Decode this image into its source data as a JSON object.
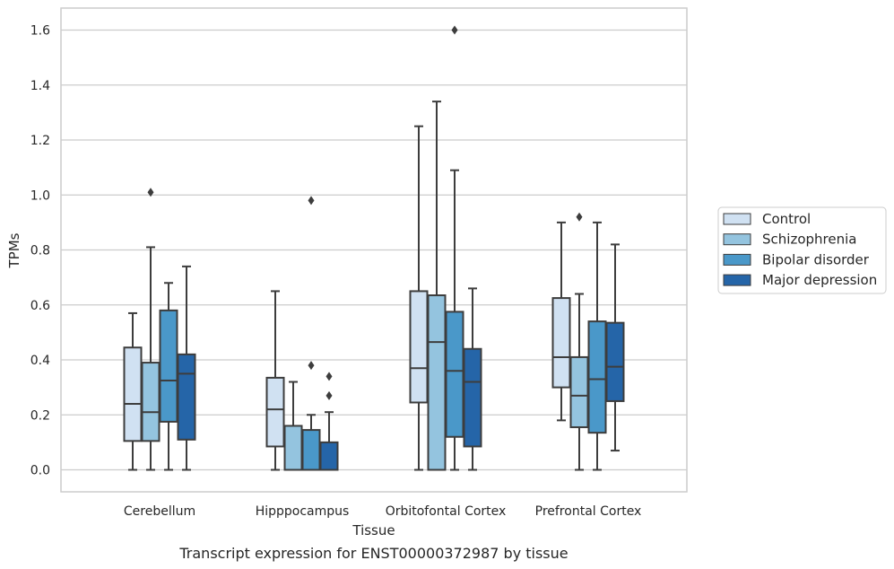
{
  "caption": "Transcript expression for ENST00000372987 by tissue",
  "chart_data": {
    "type": "box",
    "xlabel": "Tissue",
    "ylabel": "TPMs",
    "ylim": [
      -0.08,
      1.68
    ],
    "yticks": [
      "0.0",
      "0.2",
      "0.4",
      "0.6",
      "0.8",
      "1.0",
      "1.2",
      "1.4",
      "1.6"
    ],
    "grid": "horizontal",
    "legend_position": "right",
    "categories": [
      "Cerebellum",
      "Hipppocampus",
      "Orbitofontal Cortex",
      "Prefrontal Cortex"
    ],
    "series": [
      {
        "name": "Control",
        "color": "#d0e1f2",
        "boxes": [
          {
            "whislo": 0.0,
            "q1": 0.105,
            "med": 0.24,
            "q3": 0.445,
            "whishi": 0.57,
            "fliers": []
          },
          {
            "whislo": 0.0,
            "q1": 0.085,
            "med": 0.22,
            "q3": 0.335,
            "whishi": 0.65,
            "fliers": []
          },
          {
            "whislo": 0.0,
            "q1": 0.245,
            "med": 0.37,
            "q3": 0.65,
            "whishi": 1.25,
            "fliers": []
          },
          {
            "whislo": 0.18,
            "q1": 0.3,
            "med": 0.41,
            "q3": 0.625,
            "whishi": 0.9,
            "fliers": []
          }
        ]
      },
      {
        "name": "Schizophrenia",
        "color": "#94c4df",
        "boxes": [
          {
            "whislo": 0.0,
            "q1": 0.105,
            "med": 0.21,
            "q3": 0.39,
            "whishi": 0.81,
            "fliers": [
              1.01
            ]
          },
          {
            "whislo": 0.0,
            "q1": 0.0,
            "med": 0.0,
            "q3": 0.16,
            "whishi": 0.32,
            "fliers": []
          },
          {
            "whislo": 0.0,
            "q1": 0.0,
            "med": 0.465,
            "q3": 0.635,
            "whishi": 1.34,
            "fliers": []
          },
          {
            "whislo": 0.0,
            "q1": 0.155,
            "med": 0.27,
            "q3": 0.41,
            "whishi": 0.64,
            "fliers": [
              0.92
            ]
          }
        ]
      },
      {
        "name": "Bipolar disorder",
        "color": "#4a98c9",
        "boxes": [
          {
            "whislo": 0.0,
            "q1": 0.175,
            "med": 0.325,
            "q3": 0.58,
            "whishi": 0.68,
            "fliers": []
          },
          {
            "whislo": 0.0,
            "q1": 0.0,
            "med": 0.0,
            "q3": 0.145,
            "whishi": 0.2,
            "fliers": [
              0.98,
              0.38
            ]
          },
          {
            "whislo": 0.0,
            "q1": 0.12,
            "med": 0.36,
            "q3": 0.575,
            "whishi": 1.09,
            "fliers": [
              1.6
            ]
          },
          {
            "whislo": 0.0,
            "q1": 0.135,
            "med": 0.33,
            "q3": 0.54,
            "whishi": 0.9,
            "fliers": []
          }
        ]
      },
      {
        "name": "Major depression",
        "color": "#2565a8",
        "boxes": [
          {
            "whislo": 0.0,
            "q1": 0.11,
            "med": 0.35,
            "q3": 0.42,
            "whishi": 0.74,
            "fliers": []
          },
          {
            "whislo": 0.0,
            "q1": 0.0,
            "med": 0.0,
            "q3": 0.1,
            "whishi": 0.21,
            "fliers": [
              0.34,
              0.27
            ]
          },
          {
            "whislo": 0.0,
            "q1": 0.085,
            "med": 0.32,
            "q3": 0.44,
            "whishi": 0.66,
            "fliers": []
          },
          {
            "whislo": 0.07,
            "q1": 0.25,
            "med": 0.375,
            "q3": 0.535,
            "whishi": 0.82,
            "fliers": []
          }
        ]
      }
    ]
  }
}
